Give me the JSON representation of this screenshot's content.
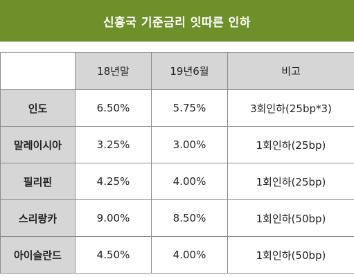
{
  "title": "신흥국 기준금리 잇따른 인하",
  "table": {
    "headers": [
      "",
      "18년말",
      "19년6월",
      "비고"
    ],
    "rows": [
      {
        "country": "인도",
        "end_2018": "6.50%",
        "june_2019": "5.75%",
        "note": "3회인하(25bp*3)"
      },
      {
        "country": "말레이시아",
        "end_2018": "3.25%",
        "june_2019": "3.00%",
        "note": "1회인하(25bp)"
      },
      {
        "country": "필리핀",
        "end_2018": "4.25%",
        "june_2019": "4.00%",
        "note": "1회인하(25bp)"
      },
      {
        "country": "스리랑카",
        "end_2018": "9.00%",
        "june_2019": "8.50%",
        "note": "1회인하(50bp)"
      },
      {
        "country": "아이슬란드",
        "end_2018": "4.50%",
        "june_2019": "4.00%",
        "note": "1회인하(50bp)"
      }
    ]
  },
  "colors": {
    "title_bar": "#6f8f2b",
    "header_fill": "#d6d6d6",
    "border": "#8a8a8a"
  }
}
